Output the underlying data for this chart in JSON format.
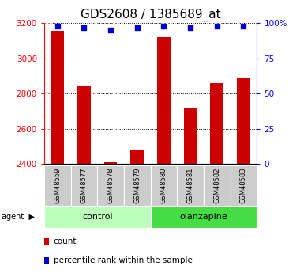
{
  "title": "GDS2608 / 1385689_at",
  "samples": [
    "GSM48559",
    "GSM48577",
    "GSM48578",
    "GSM48579",
    "GSM48580",
    "GSM48581",
    "GSM48582",
    "GSM48583"
  ],
  "counts": [
    3155,
    2840,
    2410,
    2480,
    3120,
    2720,
    2860,
    2890
  ],
  "percentiles": [
    98,
    97,
    95,
    97,
    98,
    97,
    98,
    98
  ],
  "groups": [
    {
      "label": "control",
      "start": 0,
      "end": 4,
      "color": "#bbffbb"
    },
    {
      "label": "olanzapine",
      "start": 4,
      "end": 8,
      "color": "#44dd44"
    }
  ],
  "sample_bg_color": "#cccccc",
  "bar_color": "#cc0000",
  "dot_color": "#0000cc",
  "ylim_left": [
    2400,
    3200
  ],
  "ylim_right": [
    0,
    100
  ],
  "yticks_left": [
    2400,
    2600,
    2800,
    3000,
    3200
  ],
  "yticks_right": [
    0,
    25,
    50,
    75,
    100
  ],
  "legend_count_color": "#cc0000",
  "legend_pct_color": "#0000cc",
  "title_fontsize": 11,
  "tick_fontsize": 7.5,
  "sample_fontsize": 6,
  "group_fontsize": 8,
  "legend_fontsize": 7.5
}
